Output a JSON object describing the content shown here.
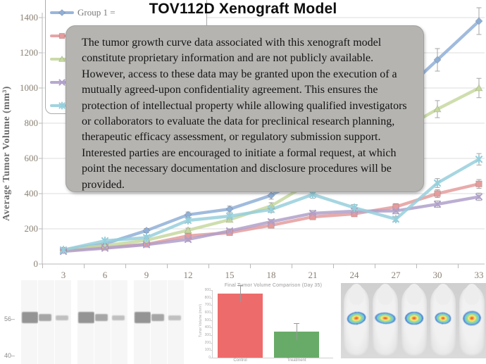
{
  "title": "TOV112D Xenograft Model",
  "notice": {
    "text": "The tumor growth curve data associated with this xenograft model constitute proprietary information and are not publicly available. However, access to these data may be granted upon the execution of a mutually agreed-upon confidentiality agreement. This ensures the protection of intellectual property while allowing qualified investigators or collaborators to evaluate the data for preclinical research planning, therapeutic efficacy assessment, or regulatory submission support. Interested parties are encouraged to initiate a formal request, at which point the necessary documentation and disclosure procedures will be provided."
  },
  "chart_data": [
    {
      "type": "line",
      "title": "TOV112D Xenograft Model",
      "xlabel": "",
      "ylabel": "Average Tumor Volume (mm³)",
      "x": [
        3,
        6,
        9,
        12,
        15,
        18,
        21,
        24,
        27,
        30,
        33
      ],
      "ylim": [
        0,
        1400
      ],
      "yticks": [
        0,
        200,
        400,
        600,
        800,
        1000,
        1200,
        1400
      ],
      "grid": true,
      "error_bars": true,
      "legend_position": "top-left",
      "series": [
        {
          "name": "Group 1 =",
          "color": "#8fafd7",
          "marker": "diamond",
          "values": [
            80,
            115,
            190,
            280,
            312,
            390,
            520,
            720,
            940,
            1160,
            1380
          ]
        },
        {
          "name": "",
          "color": "#e49c9c",
          "marker": "square",
          "values": [
            78,
            95,
            112,
            160,
            178,
            220,
            268,
            285,
            325,
            400,
            455
          ]
        },
        {
          "name": "",
          "color": "#c6d89f",
          "marker": "triangle",
          "values": [
            80,
            105,
            135,
            192,
            252,
            330,
            470,
            600,
            745,
            880,
            1000
          ]
        },
        {
          "name": "",
          "color": "#b0a0ca",
          "marker": "x",
          "values": [
            72,
            90,
            110,
            140,
            188,
            240,
            288,
            300,
            302,
            340,
            382
          ]
        },
        {
          "name": "",
          "color": "#96cfdc",
          "marker": "asterisk",
          "values": [
            80,
            132,
            150,
            248,
            272,
            310,
            395,
            320,
            255,
            460,
            595
          ]
        }
      ]
    },
    {
      "type": "bar",
      "title": "Final Tumor Volume Comparison (Day 35)",
      "categories": [
        "Control",
        "Treatment"
      ],
      "values": [
        850,
        345
      ],
      "colors": [
        "#ee6b6b",
        "#68ab68"
      ],
      "ylabel": "Tumor Volume (mm³)",
      "ylim": [
        0,
        900
      ],
      "yticks": [
        0,
        100,
        200,
        300,
        400,
        500,
        600,
        700,
        800,
        900
      ]
    }
  ],
  "blot": {
    "mw_labels": [
      "56–",
      "40–"
    ],
    "groups": 3,
    "bands_per_group": 3,
    "band_opacities": [
      0.95,
      0.78,
      0.52
    ],
    "band_color": "#8f8f8f"
  },
  "mice": {
    "count": 5
  }
}
